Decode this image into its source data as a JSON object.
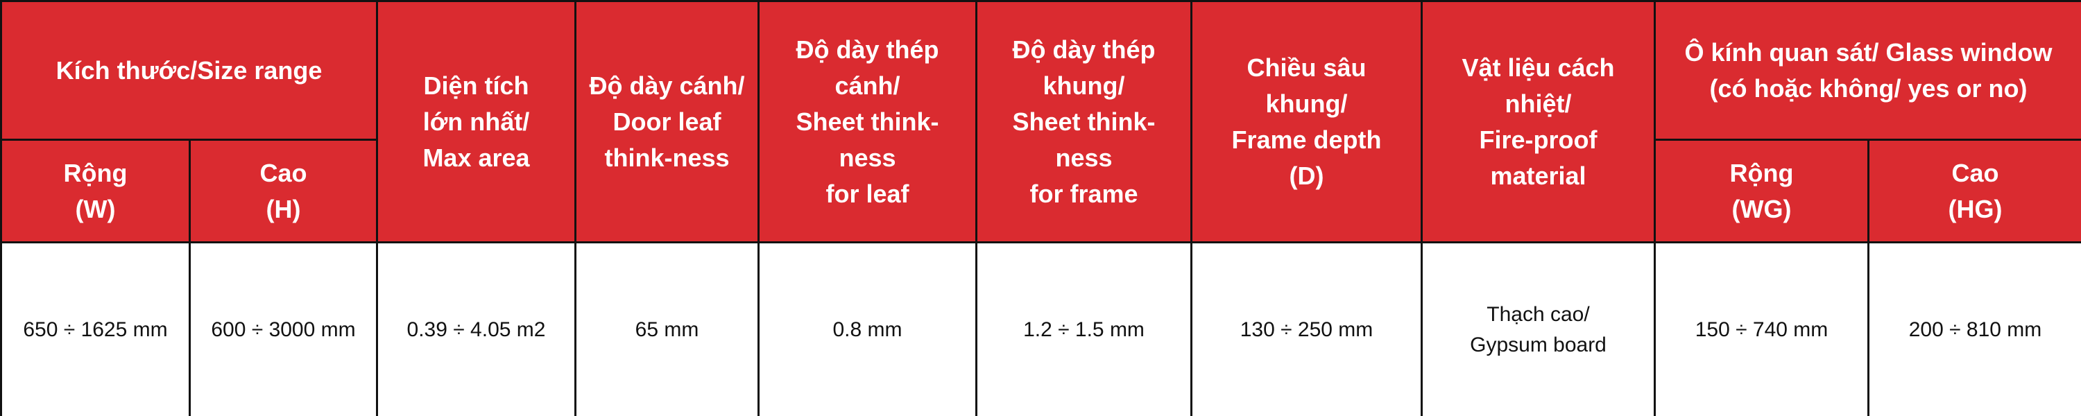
{
  "table": {
    "headers": {
      "size_range": "Kích thước/Size range",
      "width": "Rộng\n(W)",
      "height": "Cao\n(H)",
      "max_area": "Diện tích\nlớn nhất/\nMax area",
      "leaf_thickness": "Độ dày cánh/\nDoor leaf\nthink-ness",
      "leaf_sheet": "Độ dày thép\ncánh/\nSheet think-\nness\nfor leaf",
      "frame_sheet": "Độ dày thép\nkhung/\nSheet think-\nness\nfor frame",
      "frame_depth": "Chiều sâu\nkhung/\nFrame depth\n(D)",
      "fireproof": "Vật liệu cách\nnhiệt/\nFire-proof\nmaterial",
      "glass_window": "Ô kính quan sát/ Glass window\n(có hoặc không/ yes or no)",
      "glass_width": "Rộng\n(WG)",
      "glass_height": "Cao\n(HG)"
    },
    "values": {
      "width": "650 ÷ 1625 mm",
      "height": "600 ÷ 3000 mm",
      "max_area": "0.39 ÷ 4.05 m2",
      "leaf_thickness": "65 mm",
      "leaf_sheet": "0.8 mm",
      "frame_sheet": "1.2 ÷ 1.5 mm",
      "frame_depth": "130 ÷ 250 mm",
      "fireproof": "Thạch cao/\nGypsum board",
      "glass_width": "150 ÷ 740 mm",
      "glass_height": "200 ÷ 810 mm"
    },
    "colors": {
      "header_bg": "#da2b30",
      "header_text": "#ffffff",
      "border": "#111111"
    }
  }
}
